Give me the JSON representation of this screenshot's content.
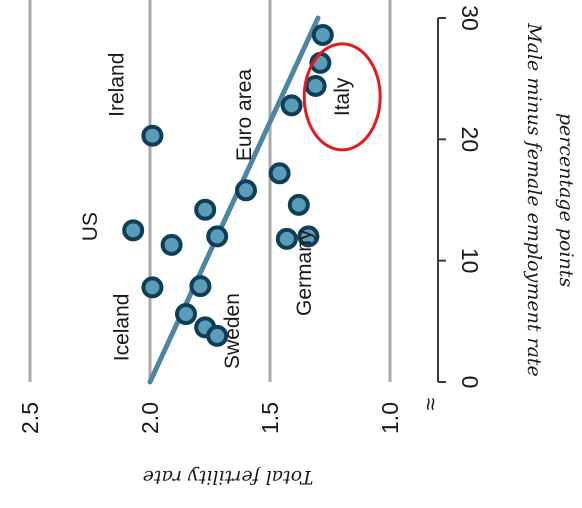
{
  "chart_data": {
    "type": "scatter",
    "orientation": "rotated 90 degrees clockwise",
    "title": "",
    "x": {
      "label": "Male minus female employment rate",
      "sublabel": "percentage points",
      "range": [
        0,
        30
      ],
      "ticks": [
        0,
        10,
        20,
        30
      ],
      "tick_labels": [
        "0",
        "10",
        "20",
        "30"
      ]
    },
    "y": {
      "label": "Total fertility rate",
      "range": [
        1.0,
        2.5
      ],
      "ticks": [
        1.0,
        1.5,
        2.0,
        2.5
      ],
      "tick_labels": [
        "1.0",
        "1.5",
        "2.0",
        "2.5"
      ],
      "break_marker": "≈",
      "gridlines": true
    },
    "points": [
      {
        "x": 7.8,
        "y": 1.99
      },
      {
        "x": 12.5,
        "y": 2.07
      },
      {
        "x": 20.3,
        "y": 1.99
      },
      {
        "x": 11.3,
        "y": 1.91
      },
      {
        "x": 14.2,
        "y": 1.77
      },
      {
        "x": 12.0,
        "y": 1.72
      },
      {
        "x": 7.9,
        "y": 1.79
      },
      {
        "x": 5.6,
        "y": 1.85
      },
      {
        "x": 4.5,
        "y": 1.77
      },
      {
        "x": 3.8,
        "y": 1.72
      },
      {
        "x": 15.8,
        "y": 1.6
      },
      {
        "x": 17.2,
        "y": 1.46
      },
      {
        "x": 14.6,
        "y": 1.38
      },
      {
        "x": 11.8,
        "y": 1.43
      },
      {
        "x": 12.0,
        "y": 1.34
      },
      {
        "x": 22.8,
        "y": 1.41
      },
      {
        "x": 24.4,
        "y": 1.31
      },
      {
        "x": 26.3,
        "y": 1.29
      },
      {
        "x": 28.6,
        "y": 1.28
      }
    ],
    "trendline": {
      "x": [
        0,
        30
      ],
      "y": [
        2.0,
        1.3
      ]
    },
    "annotations": [
      {
        "text": "Iceland",
        "x": 4.5,
        "y": 2.09
      },
      {
        "text": "US",
        "x": 12.8,
        "y": 2.22
      },
      {
        "text": "Ireland",
        "x": 24.5,
        "y": 2.11
      },
      {
        "text": "Sweden",
        "x": 4.2,
        "y": 1.63
      },
      {
        "text": "Euro area",
        "x": 22.0,
        "y": 1.58
      },
      {
        "text": "Germany",
        "x": 9.0,
        "y": 1.33
      },
      {
        "text": "Italy",
        "x": 23.5,
        "y": 1.17
      }
    ],
    "highlight": {
      "label": "Italy",
      "color": "#e3191d"
    },
    "colors": {
      "point_fill": "#5b9cb8",
      "point_stroke": "#0e3f57",
      "trendline": "#4d86a3",
      "gridline": "#a9a9a9",
      "text": "#1a1a1a"
    }
  }
}
